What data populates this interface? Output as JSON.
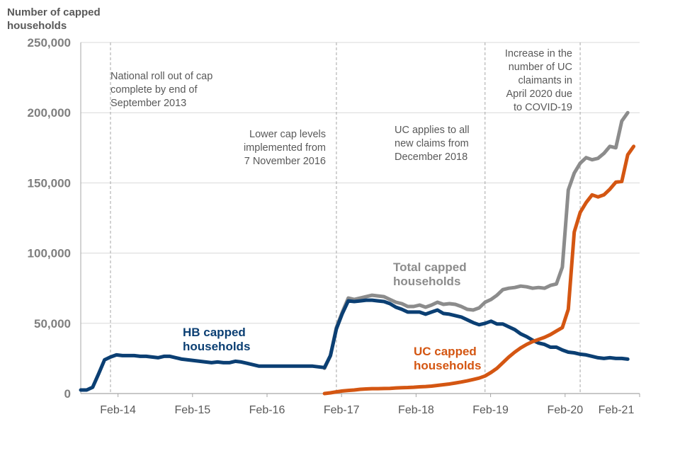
{
  "chart_data": {
    "type": "line",
    "ylabel_lines": [
      "Number of capped",
      "households"
    ],
    "y_ticks": [
      "0",
      "50,000",
      "100,000",
      "150,000",
      "200,000",
      "250,000"
    ],
    "ylim": [
      0,
      250000
    ],
    "x_ticks": [
      "Feb-14",
      "Feb-15",
      "Feb-16",
      "Feb-17",
      "Feb-18",
      "Feb-19",
      "Feb-20",
      "Feb-21"
    ],
    "xlim": [
      "2013-04",
      "2021-02"
    ],
    "grid": "horizontal",
    "colors": {
      "hb": "#0b3f73",
      "uc": "#d45612",
      "total": "#8c8c8c",
      "grid": "#d9d9d9",
      "axis": "#a6a6a6",
      "vline": "#a6a6a6"
    },
    "annotations": [
      {
        "date": "2013-09",
        "lines": [
          "National roll out of cap",
          "complete by end of",
          "September 2013"
        ]
      },
      {
        "date": "2016-11",
        "lines": [
          "Lower cap levels",
          "implemented from",
          "7 November 2016"
        ]
      },
      {
        "date": "2018-12",
        "lines": [
          "UC applies to all",
          "new claims from",
          "December 2018"
        ]
      },
      {
        "date": "2020-04",
        "lines": [
          "Increase  in the",
          "number of UC",
          "claimants in",
          "April 2020 due",
          "to COVID-19"
        ]
      }
    ],
    "series": [
      {
        "key": "total",
        "name_lines": [
          "Total capped",
          "households"
        ],
        "points": [
          [
            "2016-09",
            18000
          ],
          [
            "2016-10",
            27000
          ],
          [
            "2016-11",
            47000
          ],
          [
            "2016-12",
            58000
          ],
          [
            "2017-01",
            68000
          ],
          [
            "2017-02",
            67000
          ],
          [
            "2017-03",
            68000
          ],
          [
            "2017-04",
            69000
          ],
          [
            "2017-05",
            70000
          ],
          [
            "2017-06",
            69500
          ],
          [
            "2017-07",
            69000
          ],
          [
            "2017-08",
            67000
          ],
          [
            "2017-09",
            65000
          ],
          [
            "2017-10",
            64000
          ],
          [
            "2017-11",
            62000
          ],
          [
            "2017-12",
            62000
          ],
          [
            "2018-01",
            63000
          ],
          [
            "2018-02",
            61500
          ],
          [
            "2018-03",
            63000
          ],
          [
            "2018-04",
            65000
          ],
          [
            "2018-05",
            63500
          ],
          [
            "2018-06",
            64000
          ],
          [
            "2018-07",
            63500
          ],
          [
            "2018-08",
            62000
          ],
          [
            "2018-09",
            60000
          ],
          [
            "2018-10",
            59500
          ],
          [
            "2018-11",
            61000
          ],
          [
            "2018-12",
            65000
          ],
          [
            "2019-01",
            67000
          ],
          [
            "2019-02",
            70000
          ],
          [
            "2019-03",
            74000
          ],
          [
            "2019-04",
            75000
          ],
          [
            "2019-05",
            75500
          ],
          [
            "2019-06",
            76500
          ],
          [
            "2019-07",
            76000
          ],
          [
            "2019-08",
            75000
          ],
          [
            "2019-09",
            75500
          ],
          [
            "2019-10",
            75000
          ],
          [
            "2019-11",
            77000
          ],
          [
            "2019-12",
            78000
          ],
          [
            "2020-01",
            90000
          ],
          [
            "2020-02",
            145000
          ],
          [
            "2020-03",
            157000
          ],
          [
            "2020-04",
            164000
          ],
          [
            "2020-05",
            168000
          ],
          [
            "2020-06",
            166500
          ],
          [
            "2020-07",
            167500
          ],
          [
            "2020-08",
            171000
          ],
          [
            "2020-09",
            176000
          ],
          [
            "2020-10",
            175000
          ],
          [
            "2020-11",
            194000
          ],
          [
            "2020-12",
            200000
          ]
        ]
      },
      {
        "key": "hb",
        "name_lines": [
          "HB capped",
          "households"
        ],
        "points": [
          [
            "2013-04",
            2500
          ],
          [
            "2013-05",
            2500
          ],
          [
            "2013-06",
            4500
          ],
          [
            "2013-07",
            14000
          ],
          [
            "2013-08",
            24000
          ],
          [
            "2013-09",
            26000
          ],
          [
            "2013-10",
            27500
          ],
          [
            "2013-11",
            27000
          ],
          [
            "2013-12",
            27000
          ],
          [
            "2014-01",
            27000
          ],
          [
            "2014-02",
            26500
          ],
          [
            "2014-03",
            26500
          ],
          [
            "2014-04",
            26000
          ],
          [
            "2014-05",
            25500
          ],
          [
            "2014-06",
            26500
          ],
          [
            "2014-07",
            26500
          ],
          [
            "2014-08",
            25500
          ],
          [
            "2014-09",
            24500
          ],
          [
            "2014-10",
            24000
          ],
          [
            "2014-11",
            23500
          ],
          [
            "2014-12",
            23000
          ],
          [
            "2015-01",
            22500
          ],
          [
            "2015-02",
            22000
          ],
          [
            "2015-03",
            22500
          ],
          [
            "2015-04",
            22000
          ],
          [
            "2015-05",
            22000
          ],
          [
            "2015-06",
            23000
          ],
          [
            "2015-07",
            22500
          ],
          [
            "2015-08",
            21500
          ],
          [
            "2015-09",
            20500
          ],
          [
            "2015-10",
            19500
          ],
          [
            "2015-11",
            19500
          ],
          [
            "2015-12",
            19500
          ],
          [
            "2016-01",
            19500
          ],
          [
            "2016-02",
            19500
          ],
          [
            "2016-03",
            19500
          ],
          [
            "2016-04",
            19500
          ],
          [
            "2016-05",
            19500
          ],
          [
            "2016-06",
            19500
          ],
          [
            "2016-07",
            19500
          ],
          [
            "2016-08",
            19000
          ],
          [
            "2016-09",
            18500
          ],
          [
            "2016-10",
            27000
          ],
          [
            "2016-11",
            46000
          ],
          [
            "2016-12",
            57000
          ],
          [
            "2017-01",
            66000
          ],
          [
            "2017-02",
            65500
          ],
          [
            "2017-03",
            66000
          ],
          [
            "2017-04",
            66500
          ],
          [
            "2017-05",
            66500
          ],
          [
            "2017-06",
            66000
          ],
          [
            "2017-07",
            65500
          ],
          [
            "2017-08",
            64000
          ],
          [
            "2017-09",
            61500
          ],
          [
            "2017-10",
            60000
          ],
          [
            "2017-11",
            58000
          ],
          [
            "2017-12",
            58000
          ],
          [
            "2018-01",
            58000
          ],
          [
            "2018-02",
            56500
          ],
          [
            "2018-03",
            58000
          ],
          [
            "2018-04",
            59500
          ],
          [
            "2018-05",
            57000
          ],
          [
            "2018-06",
            56500
          ],
          [
            "2018-07",
            55500
          ],
          [
            "2018-08",
            54500
          ],
          [
            "2018-09",
            52500
          ],
          [
            "2018-10",
            50500
          ],
          [
            "2018-11",
            49000
          ],
          [
            "2018-12",
            50000
          ],
          [
            "2019-01",
            51500
          ],
          [
            "2019-02",
            49500
          ],
          [
            "2019-03",
            49500
          ],
          [
            "2019-04",
            47500
          ],
          [
            "2019-05",
            45500
          ],
          [
            "2019-06",
            42500
          ],
          [
            "2019-07",
            40500
          ],
          [
            "2019-08",
            38000
          ],
          [
            "2019-09",
            36000
          ],
          [
            "2019-10",
            35000
          ],
          [
            "2019-11",
            33000
          ],
          [
            "2019-12",
            33000
          ],
          [
            "2020-01",
            31000
          ],
          [
            "2020-02",
            29500
          ],
          [
            "2020-03",
            29000
          ],
          [
            "2020-04",
            28000
          ],
          [
            "2020-05",
            27500
          ],
          [
            "2020-06",
            26500
          ],
          [
            "2020-07",
            25500
          ],
          [
            "2020-08",
            25000
          ],
          [
            "2020-09",
            25500
          ],
          [
            "2020-10",
            25000
          ],
          [
            "2020-11",
            25000
          ],
          [
            "2020-12",
            24500
          ]
        ]
      },
      {
        "key": "uc",
        "name_lines": [
          "UC capped",
          "households"
        ],
        "points": [
          [
            "2016-09",
            0
          ],
          [
            "2016-10",
            500
          ],
          [
            "2016-11",
            1200
          ],
          [
            "2016-12",
            1800
          ],
          [
            "2017-01",
            2200
          ],
          [
            "2017-02",
            2500
          ],
          [
            "2017-03",
            3000
          ],
          [
            "2017-04",
            3300
          ],
          [
            "2017-05",
            3500
          ],
          [
            "2017-06",
            3500
          ],
          [
            "2017-07",
            3600
          ],
          [
            "2017-08",
            3700
          ],
          [
            "2017-09",
            4000
          ],
          [
            "2017-10",
            4200
          ],
          [
            "2017-11",
            4300
          ],
          [
            "2017-12",
            4500
          ],
          [
            "2018-01",
            4800
          ],
          [
            "2018-02",
            5000
          ],
          [
            "2018-03",
            5300
          ],
          [
            "2018-04",
            5800
          ],
          [
            "2018-05",
            6300
          ],
          [
            "2018-06",
            6800
          ],
          [
            "2018-07",
            7500
          ],
          [
            "2018-08",
            8200
          ],
          [
            "2018-09",
            9000
          ],
          [
            "2018-10",
            10000
          ],
          [
            "2018-11",
            11000
          ],
          [
            "2018-12",
            12500
          ],
          [
            "2019-01",
            15000
          ],
          [
            "2019-02",
            18000
          ],
          [
            "2019-03",
            22000
          ],
          [
            "2019-04",
            26000
          ],
          [
            "2019-05",
            29500
          ],
          [
            "2019-06",
            32500
          ],
          [
            "2019-07",
            35000
          ],
          [
            "2019-08",
            37000
          ],
          [
            "2019-09",
            38500
          ],
          [
            "2019-10",
            40000
          ],
          [
            "2019-11",
            42000
          ],
          [
            "2019-12",
            44500
          ],
          [
            "2020-01",
            47000
          ],
          [
            "2020-02",
            60000
          ],
          [
            "2020-03",
            115000
          ],
          [
            "2020-04",
            129000
          ],
          [
            "2020-05",
            136000
          ],
          [
            "2020-06",
            141500
          ],
          [
            "2020-07",
            140000
          ],
          [
            "2020-08",
            141500
          ],
          [
            "2020-09",
            145500
          ],
          [
            "2020-10",
            150500
          ],
          [
            "2020-11",
            151000
          ],
          [
            "2020-12",
            170000
          ],
          [
            "2021-01",
            176000
          ]
        ]
      }
    ]
  }
}
